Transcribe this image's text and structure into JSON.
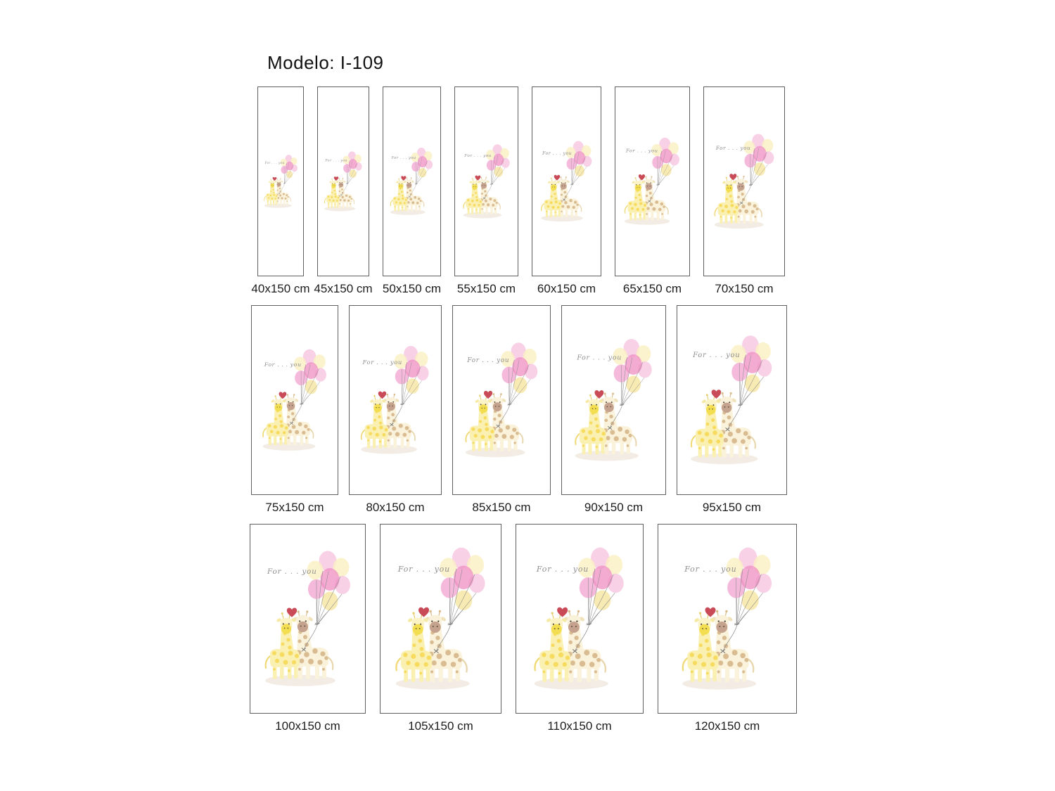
{
  "title": "Modelo: I-109",
  "illustration": {
    "caption": "For . . . you",
    "colors": {
      "balloon_pink_light": "#F6C6E0",
      "balloon_pink_mid": "#F3A8D2",
      "balloon_pink_deep": "#EF8FC3",
      "balloon_yellow": "#FAF0C2",
      "balloon_yellow_deep": "#F6E5A0",
      "heart": "#C84B57",
      "string": "#8A8A8A",
      "caption_text": "#8F8F8F",
      "ground": "#F2ECE4",
      "giraffe_yellow_body": "#FAF0B2",
      "giraffe_yellow_head": "#FBF3C6",
      "giraffe_yellow_spot": "#F6DB5F",
      "giraffe_yellow_muzzle": "#F3DE52",
      "giraffe_cream_body": "#FAF2DA",
      "giraffe_cream_head": "#F9F1DA",
      "giraffe_cream_spot": "#D9BC92",
      "giraffe_cream_muzzle": "#C5A28D"
    }
  },
  "rows": [
    {
      "panels": [
        {
          "label": "40x150 cm",
          "width_cm": 40,
          "height_cm": 150
        },
        {
          "label": "45x150 cm",
          "width_cm": 45,
          "height_cm": 150
        },
        {
          "label": "50x150 cm",
          "width_cm": 50,
          "height_cm": 150
        },
        {
          "label": "55x150 cm",
          "width_cm": 55,
          "height_cm": 150
        },
        {
          "label": "60x150 cm",
          "width_cm": 60,
          "height_cm": 150
        },
        {
          "label": "65x150 cm",
          "width_cm": 65,
          "height_cm": 150
        },
        {
          "label": "70x150 cm",
          "width_cm": 70,
          "height_cm": 150
        }
      ]
    },
    {
      "panels": [
        {
          "label": "75x150 cm",
          "width_cm": 75,
          "height_cm": 150
        },
        {
          "label": "80x150 cm",
          "width_cm": 80,
          "height_cm": 150
        },
        {
          "label": "85x150 cm",
          "width_cm": 85,
          "height_cm": 150
        },
        {
          "label": "90x150 cm",
          "width_cm": 90,
          "height_cm": 150
        },
        {
          "label": "95x150 cm",
          "width_cm": 95,
          "height_cm": 150
        }
      ]
    },
    {
      "panels": [
        {
          "label": "100x150 cm",
          "width_cm": 100,
          "height_cm": 150
        },
        {
          "label": "105x150 cm",
          "width_cm": 105,
          "height_cm": 150
        },
        {
          "label": "110x150 cm",
          "width_cm": 110,
          "height_cm": 150
        },
        {
          "label": "120x150 cm",
          "width_cm": 120,
          "height_cm": 150
        }
      ]
    }
  ]
}
